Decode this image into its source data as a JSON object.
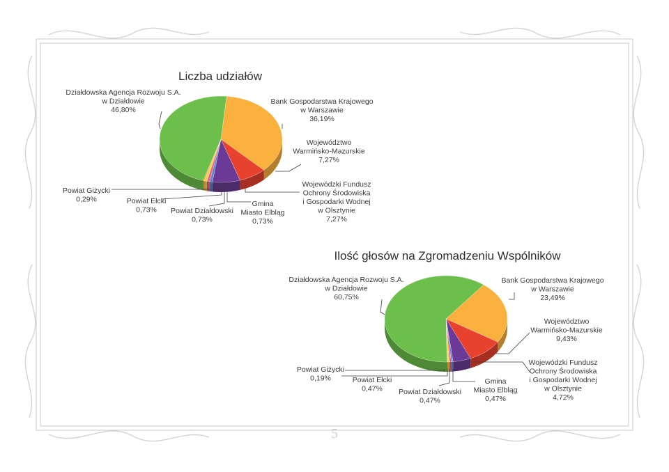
{
  "page": {
    "number": "5"
  },
  "colors": {
    "green": "#6dbf4b",
    "orange": "#f9b03d",
    "red": "#e8412e",
    "purple": "#6a3a96",
    "blue": "#5a86c5",
    "small_a": "#e65c8a",
    "small_b": "#f2d14a",
    "small_c": "#f18a2a"
  },
  "chart_data": [
    {
      "type": "pie",
      "title": "Liczba udziałów",
      "slices": [
        {
          "name": "Bank Gospodarstwa Krajowego w Warszawie",
          "lines": [
            "Bank Gospodarstwa Krajowego",
            "w Warszawie",
            "36,19%"
          ],
          "value": 36.19,
          "color": "#f9b03d"
        },
        {
          "name": "Województwo Warmińsko-Mazurskie",
          "lines": [
            "Województwo",
            "Warmińsko-Mazurskie",
            "7,27%"
          ],
          "value": 7.27,
          "color": "#e8412e"
        },
        {
          "name": "Wojewódzki Fundusz Ochrony Środowiska i Gospodarki Wodnej w Olsztynie",
          "lines": [
            "Wojewódzki Fundusz",
            "Ochrony Środowiska",
            "i Gospodarki Wodnej",
            "w Olsztynie",
            "7,27%"
          ],
          "value": 7.27,
          "color": "#6a3a96"
        },
        {
          "name": "Gmina Miasto Elbląg",
          "lines": [
            "Gmina",
            "Miasto Elbląg",
            "0,73%"
          ],
          "value": 0.73,
          "color": "#5a86c5"
        },
        {
          "name": "Powiat Działdowski",
          "lines": [
            "Powiat Działdowski",
            "0,73%"
          ],
          "value": 0.73,
          "color": "#e65c8a"
        },
        {
          "name": "Powiat Ełcki",
          "lines": [
            "Powiat Ełcki",
            "0,73%"
          ],
          "value": 0.73,
          "color": "#f2d14a"
        },
        {
          "name": "Powiat Giżycki",
          "lines": [
            "Powiat Giżycki",
            "0,29%"
          ],
          "value": 0.29,
          "color": "#f18a2a"
        },
        {
          "name": "Działdowska Agencja Rozwoju S.A. w Działdowie",
          "lines": [
            "Działdowska Agencja Rozwoju S.A.",
            "w Działdowie",
            "46,80%"
          ],
          "value": 46.8,
          "color": "#6dbf4b"
        }
      ]
    },
    {
      "type": "pie",
      "title": "Ilość głosów na Zgromadzeniu Wspólników",
      "slices": [
        {
          "name": "Bank Gospodarstwa Krajowego w Warszawie",
          "lines": [
            "Bank Gospodarstwa Krajowego",
            "w Warszawie",
            "23,49%"
          ],
          "value": 23.49,
          "color": "#f9b03d"
        },
        {
          "name": "Województwo Warmińsko-Mazurskie",
          "lines": [
            "Województwo",
            "Warmińsko-Mazurskie",
            "9,43%"
          ],
          "value": 9.43,
          "color": "#e8412e"
        },
        {
          "name": "Wojewódzki Fundusz Ochrony Środowiska i Gospodarki Wodnej w Olsztynie",
          "lines": [
            "Wojewódzki Fundusz",
            "Ochrony Środowiska",
            "i Gospodarki Wodnej",
            "w Olsztynie",
            "4,72%"
          ],
          "value": 4.72,
          "color": "#6a3a96"
        },
        {
          "name": "Gmina Miasto Elbląg",
          "lines": [
            "Gmina",
            "Miasto Elbląg",
            "0,47%"
          ],
          "value": 0.47,
          "color": "#5a86c5"
        },
        {
          "name": "Powiat Działdowski",
          "lines": [
            "Powiat Działdowski",
            "0,47%"
          ],
          "value": 0.47,
          "color": "#e65c8a"
        },
        {
          "name": "Powiat Ełcki",
          "lines": [
            "Powiat Ełcki",
            "0,47%"
          ],
          "value": 0.47,
          "color": "#f2d14a"
        },
        {
          "name": "Powiat Giżycki",
          "lines": [
            "Powiat Giżycki",
            "0,19%"
          ],
          "value": 0.19,
          "color": "#f18a2a"
        },
        {
          "name": "Działdowska Agencja Rozwoju S.A. w Działdowie",
          "lines": [
            "Działdowska Agencja Rozwoju S.A.",
            "w Działdowie",
            "60,75%"
          ],
          "value": 60.75,
          "color": "#6dbf4b"
        }
      ]
    }
  ]
}
